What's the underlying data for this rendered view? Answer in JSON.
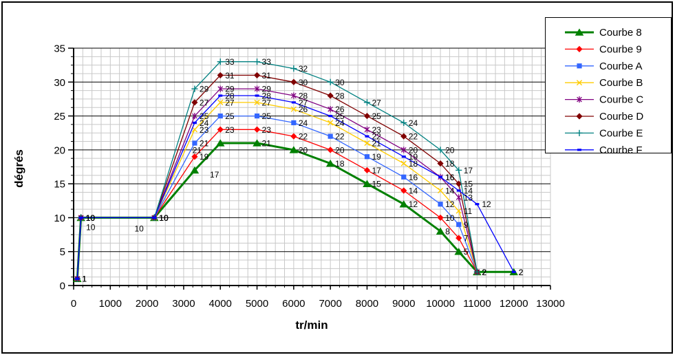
{
  "chart_data": {
    "type": "line",
    "title": "",
    "xlabel": "tr/min",
    "ylabel": "dégrés",
    "xlim": [
      0,
      13000
    ],
    "ylim": [
      0,
      35
    ],
    "x_ticks": [
      0,
      1000,
      2000,
      3000,
      4000,
      5000,
      6000,
      7000,
      8000,
      9000,
      10000,
      11000,
      12000,
      13000
    ],
    "y_ticks": [
      0,
      5,
      10,
      15,
      20,
      25,
      30,
      35
    ],
    "x_minor_step": 250,
    "y_minor_step": 1.25,
    "grid": {
      "minor_color": "#c8c8c8",
      "major_color": "#000000",
      "plot_bg": "#ffffff"
    },
    "legend_position": "top-right",
    "series": [
      {
        "name": "Courbe 8",
        "color": "#008000",
        "marker": "triangle",
        "line_width": 3,
        "points": [
          [
            100,
            1
          ],
          [
            200,
            10
          ],
          [
            2200,
            10
          ],
          [
            3300,
            17
          ],
          [
            4000,
            21
          ],
          [
            5000,
            21
          ],
          [
            6000,
            20
          ],
          [
            7000,
            18
          ],
          [
            8000,
            15
          ],
          [
            9000,
            12
          ],
          [
            10000,
            8
          ],
          [
            10500,
            5
          ],
          [
            11000,
            2
          ],
          [
            12000,
            2
          ]
        ],
        "labels": [
          "1",
          "10",
          "10",
          "",
          "",
          "21",
          "20",
          "18",
          "15",
          "12",
          "8",
          "5",
          "2",
          "2"
        ]
      },
      {
        "name": "Courbe 9",
        "color": "#ff0000",
        "marker": "diamond",
        "line_width": 1.3,
        "points": [
          [
            100,
            1
          ],
          [
            200,
            10
          ],
          [
            2200,
            10
          ],
          [
            3300,
            19
          ],
          [
            4000,
            23
          ],
          [
            5000,
            23
          ],
          [
            6000,
            22
          ],
          [
            7000,
            20
          ],
          [
            8000,
            17
          ],
          [
            9000,
            14
          ],
          [
            10000,
            10
          ],
          [
            10500,
            7
          ],
          [
            11000,
            2
          ]
        ],
        "labels": [
          "1",
          "10",
          "10",
          "19",
          "23",
          "23",
          "22",
          "20",
          "17",
          "14",
          "10",
          "7",
          "2"
        ]
      },
      {
        "name": "Courbe A",
        "color": "#3366ff",
        "marker": "square",
        "line_width": 1.3,
        "points": [
          [
            100,
            1
          ],
          [
            200,
            10
          ],
          [
            2200,
            10
          ],
          [
            3300,
            21
          ],
          [
            4000,
            25
          ],
          [
            5000,
            25
          ],
          [
            6000,
            24
          ],
          [
            7000,
            22
          ],
          [
            8000,
            19
          ],
          [
            9000,
            16
          ],
          [
            10000,
            12
          ],
          [
            10500,
            9
          ],
          [
            11000,
            2
          ]
        ],
        "labels": [
          "1",
          "10",
          "10",
          "21",
          "25",
          "25",
          "24",
          "22",
          "19",
          "16",
          "12",
          "9",
          "2"
        ]
      },
      {
        "name": "Courbe B",
        "color": "#ffcc00",
        "marker": "x",
        "line_width": 1.3,
        "points": [
          [
            100,
            1
          ],
          [
            200,
            10
          ],
          [
            2200,
            10
          ],
          [
            3300,
            23
          ],
          [
            4000,
            27
          ],
          [
            5000,
            27
          ],
          [
            6000,
            26
          ],
          [
            7000,
            24
          ],
          [
            8000,
            21
          ],
          [
            9000,
            18
          ],
          [
            10000,
            14
          ],
          [
            10500,
            11
          ],
          [
            11000,
            2
          ]
        ],
        "labels": [
          "1",
          "10",
          "10",
          "23",
          "27",
          "27",
          "26",
          "24",
          "21",
          "18",
          "14",
          "11",
          "2"
        ]
      },
      {
        "name": "Courbe C",
        "color": "#800080",
        "marker": "star",
        "line_width": 1.3,
        "points": [
          [
            100,
            1
          ],
          [
            200,
            10
          ],
          [
            2200,
            10
          ],
          [
            3300,
            25
          ],
          [
            4000,
            29
          ],
          [
            5000,
            29
          ],
          [
            6000,
            28
          ],
          [
            7000,
            26
          ],
          [
            8000,
            23
          ],
          [
            9000,
            20
          ],
          [
            10000,
            16
          ],
          [
            10500,
            13
          ],
          [
            11000,
            2
          ]
        ],
        "labels": [
          "1",
          "10",
          "10",
          "25",
          "29",
          "29",
          "28",
          "26",
          "23",
          "20",
          "16",
          "13",
          "2"
        ]
      },
      {
        "name": "Courbe D",
        "color": "#800000",
        "marker": "diamond",
        "line_width": 1.3,
        "points": [
          [
            100,
            1
          ],
          [
            200,
            10
          ],
          [
            2200,
            10
          ],
          [
            3300,
            27
          ],
          [
            4000,
            31
          ],
          [
            5000,
            31
          ],
          [
            6000,
            30
          ],
          [
            7000,
            28
          ],
          [
            8000,
            25
          ],
          [
            9000,
            22
          ],
          [
            10000,
            18
          ],
          [
            10500,
            15
          ],
          [
            11000,
            2
          ]
        ],
        "labels": [
          "1",
          "10",
          "10",
          "27",
          "31",
          "31",
          "30",
          "28",
          "25",
          "22",
          "18",
          "15",
          "2"
        ]
      },
      {
        "name": "Courbe E",
        "color": "#008080",
        "marker": "plus",
        "line_width": 1.3,
        "points": [
          [
            100,
            1
          ],
          [
            200,
            10
          ],
          [
            2200,
            10
          ],
          [
            3300,
            29
          ],
          [
            4000,
            33
          ],
          [
            5000,
            33
          ],
          [
            6000,
            32
          ],
          [
            7000,
            30
          ],
          [
            8000,
            27
          ],
          [
            9000,
            24
          ],
          [
            10000,
            20
          ],
          [
            10500,
            17
          ],
          [
            11000,
            2
          ]
        ],
        "labels": [
          "1",
          "10",
          "10",
          "29",
          "33",
          "33",
          "32",
          "30",
          "27",
          "24",
          "20",
          "17",
          "2"
        ]
      },
      {
        "name": "Courbe F",
        "color": "#0000ff",
        "marker": "dash",
        "line_width": 1.3,
        "points": [
          [
            100,
            1
          ],
          [
            200,
            10
          ],
          [
            2200,
            10
          ],
          [
            3300,
            24
          ],
          [
            4000,
            28
          ],
          [
            5000,
            28
          ],
          [
            6000,
            27
          ],
          [
            7000,
            25
          ],
          [
            8000,
            22
          ],
          [
            9000,
            19
          ],
          [
            10000,
            16
          ],
          [
            10500,
            14
          ],
          [
            11000,
            12
          ],
          [
            12000,
            2
          ]
        ],
        "labels": [
          "1",
          "10",
          "10",
          "24",
          "28",
          "28",
          "27",
          "25",
          "22",
          "19",
          "16",
          "14",
          "12",
          "2"
        ]
      }
    ],
    "extra_labels": [
      {
        "text": "10",
        "rpm": 340,
        "deg": 8.6
      },
      {
        "text": "10",
        "rpm": 1660,
        "deg": 8.4
      },
      {
        "text": "21",
        "rpm": 3240,
        "deg": 20.0
      },
      {
        "text": "17",
        "rpm": 3715,
        "deg": 16.4
      }
    ]
  }
}
